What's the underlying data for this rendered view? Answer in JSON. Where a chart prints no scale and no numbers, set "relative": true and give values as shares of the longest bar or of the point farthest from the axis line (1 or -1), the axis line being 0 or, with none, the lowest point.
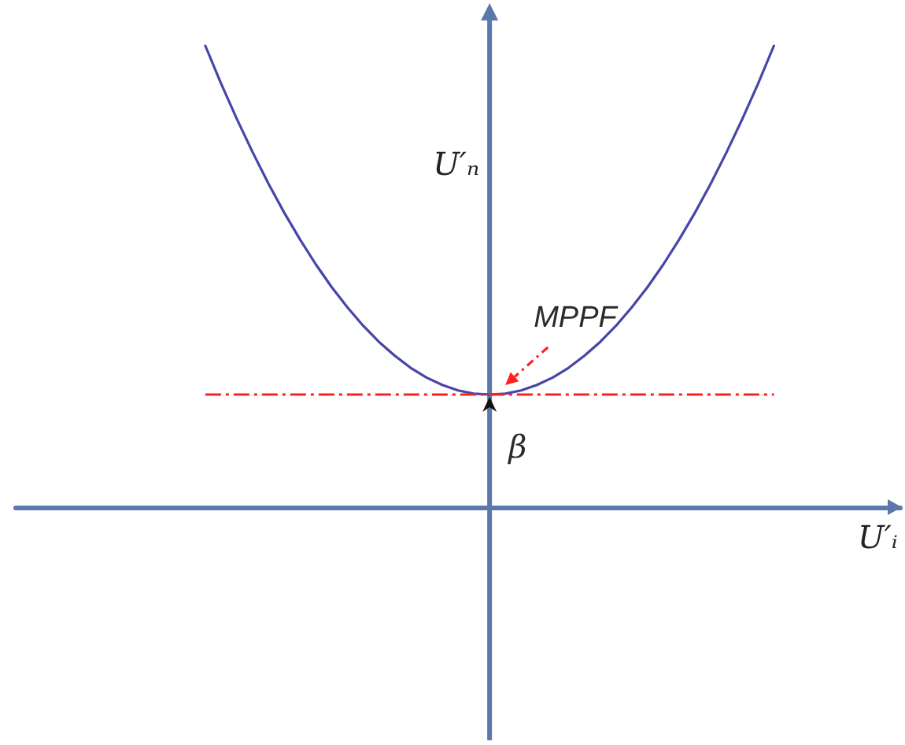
{
  "chart_data": {
    "type": "line",
    "relative": true,
    "xlabel": "U′ᵢ",
    "ylabel": "U′ₙ",
    "categories": [
      null,
      null,
      null,
      null,
      null,
      null,
      null,
      null,
      null,
      null,
      null,
      null,
      null,
      null,
      null,
      null,
      null,
      null,
      null,
      null,
      null,
      null,
      null,
      null,
      null,
      null,
      null,
      null,
      null,
      null,
      null,
      null,
      null,
      null,
      null,
      null,
      null,
      null,
      null,
      null,
      null,
      null,
      null,
      null,
      null,
      null,
      null,
      null,
      null,
      null,
      null,
      null,
      null,
      null,
      null,
      null,
      null
    ],
    "values": [
      null,
      null,
      null,
      null,
      null,
      null,
      null,
      null,
      null,
      null,
      null,
      null,
      1,
      0.918,
      0.841,
      0.769,
      0.701,
      0.638,
      0.58,
      0.526,
      0.477,
      0.433,
      0.393,
      0.358,
      0.328,
      0.302,
      0.281,
      0.265,
      0.253,
      0.246,
      0.244,
      0.246,
      0.253,
      0.265,
      0.281,
      0.302,
      0.328,
      0.358,
      0.393,
      0.433,
      0.477,
      0.526,
      0.58,
      0.638,
      0.701,
      0.769,
      0.841,
      0.918,
      1,
      null,
      null,
      null,
      null,
      null,
      null,
      null,
      null
    ],
    "color": "#4646a8",
    "marker": "none",
    "ref_lines": [
      {
        "axis": "y",
        "value": 0.244,
        "color": "#ff2020",
        "line_style": "dashed"
      }
    ],
    "annotations": [
      {
        "text": "MPPF",
        "y": 0.244
      },
      "β"
    ]
  }
}
